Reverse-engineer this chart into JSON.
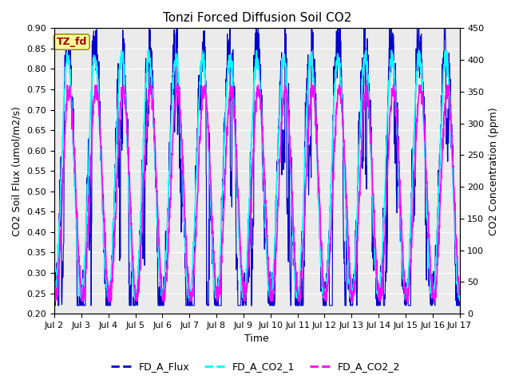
{
  "title": "Tonzi Forced Diffusion Soil CO2",
  "xlabel": "Time",
  "ylabel_left": "CO2 Soil Flux (umol/m2/s)",
  "ylabel_right": "CO2 Concentration (ppm)",
  "ylim_left": [
    0.2,
    0.9
  ],
  "ylim_right": [
    0,
    450
  ],
  "yticks_left": [
    0.2,
    0.25,
    0.3,
    0.35,
    0.4,
    0.45,
    0.5,
    0.55,
    0.6,
    0.65,
    0.7,
    0.75,
    0.8,
    0.85,
    0.9
  ],
  "yticks_right": [
    0,
    50,
    100,
    150,
    200,
    250,
    300,
    350,
    400,
    450
  ],
  "xtick_labels": [
    "Jul 2",
    "Jul 3",
    "Jul 4",
    "Jul 5",
    "Jul 6",
    "Jul 7",
    "Jul 8",
    "Jul 9",
    "Jul 10",
    "Jul 11",
    "Jul 12",
    "Jul 13",
    "Jul 14",
    "Jul 15",
    "Jul 16",
    "Jul 17"
  ],
  "color_flux": "#0000CC",
  "color_co2_1": "#00FFFF",
  "color_co2_2": "#FF00FF",
  "legend_labels": [
    "FD_A_Flux",
    "FD_A_CO2_1",
    "FD_A_CO2_2"
  ],
  "tag_text": "TZ_fd",
  "tag_bg": "#FFFF99",
  "tag_text_color": "#990000",
  "background_color": "#EBEBEB",
  "grid_color": "#FFFFFF",
  "title_fontsize": 11,
  "axis_label_fontsize": 9,
  "tick_fontsize": 8,
  "legend_fontsize": 9
}
